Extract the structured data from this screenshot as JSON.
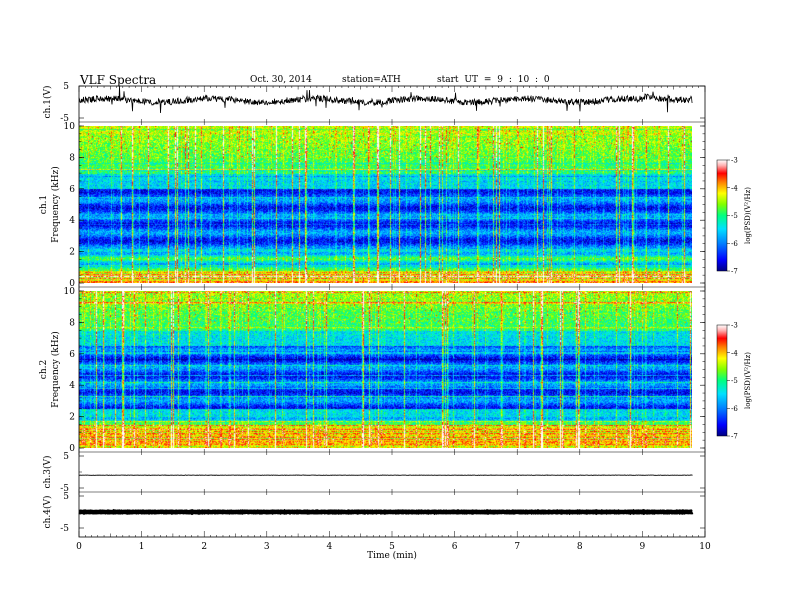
{
  "header": {
    "title": "VLF  Spectra",
    "date": "Oct. 30, 2014",
    "station": "station=ATH",
    "start_ut": "start  UT  =   9  : 10 : 0"
  },
  "colors": {
    "colormap": [
      "#000080",
      "#0000ff",
      "#0080ff",
      "#00e0ff",
      "#00ff80",
      "#80ff00",
      "#ffff00",
      "#ff8000",
      "#ff0000",
      "#ffb0b0",
      "#ffffff"
    ]
  },
  "chart_data": [
    {
      "type": "line",
      "id": "ch1",
      "ylabel": "ch.1(V)",
      "ylim": [
        -5,
        5
      ],
      "yticks": [
        "5",
        "-5"
      ],
      "x_range_min": [
        0,
        9.8
      ],
      "series": [
        {
          "description": "broadband waveform",
          "baseline": 0.5,
          "amplitude": 2.0,
          "trend": "rises slightly after 9 min"
        }
      ]
    },
    {
      "type": "heatmap",
      "id": "ch1_spectrogram",
      "ylabel": [
        "ch.1",
        "Frequency  (kHz)"
      ],
      "ylim": [
        0,
        10
      ],
      "yticks": [
        "0",
        "2",
        "4",
        "6",
        "8",
        "10"
      ],
      "x_range_min": [
        0,
        9.8
      ],
      "colorbar": {
        "label": "log(PSD)(V²/Hz)",
        "range": [
          -7,
          -3
        ],
        "ticks": [
          "-3",
          "-4",
          "-5",
          "-6",
          "-7"
        ]
      },
      "features": {
        "intense_band_khz": [
          0,
          0.8
        ],
        "high_noise_band_khz": [
          7.0,
          10.0
        ],
        "low_level_band_khz": [
          2.2,
          6.0
        ],
        "sferic_bursts": "frequent vertical broadband impulses across 0-10 kHz"
      }
    },
    {
      "type": "heatmap",
      "id": "ch2_spectrogram",
      "ylabel": [
        "ch.2",
        "Frequency  (kHz)"
      ],
      "ylim": [
        0,
        10
      ],
      "yticks": [
        "0",
        "2",
        "4",
        "6",
        "8",
        "10"
      ],
      "x_range_min": [
        0,
        9.8
      ],
      "colorbar": {
        "label": "log(PSD)(V²/Hz)",
        "range": [
          -7,
          -3
        ],
        "ticks": [
          "-3",
          "-4",
          "-5",
          "-6",
          "-7"
        ]
      },
      "features": {
        "intense_band_khz": [
          0,
          1.5
        ],
        "high_noise_band_khz": [
          7.5,
          10.0
        ],
        "low_level_band_khz": [
          2.5,
          6.5
        ],
        "sferic_bursts": "frequent vertical broadband impulses across 0-10 kHz"
      }
    },
    {
      "type": "line",
      "id": "ch3",
      "ylabel": "ch.3(V)",
      "ylim": [
        -5,
        5
      ],
      "yticks": [
        "5",
        "-5"
      ],
      "x_range_min": [
        0,
        9.8
      ],
      "series": [
        {
          "description": "near-constant level",
          "baseline": -1.0,
          "amplitude": 0.1
        }
      ]
    },
    {
      "type": "line",
      "id": "ch4",
      "ylabel": "ch.4(V)",
      "ylim": [
        -5,
        5
      ],
      "yticks": [
        "5",
        "-5"
      ],
      "x_range_min": [
        0,
        9.8
      ],
      "series": [
        {
          "description": "thick constant level",
          "baseline": 0.0,
          "amplitude": 0.15
        }
      ]
    }
  ],
  "x_axis": {
    "label": "Time  (min)",
    "range": [
      0,
      10
    ],
    "ticks": [
      "0",
      "1",
      "2",
      "3",
      "4",
      "5",
      "6",
      "7",
      "8",
      "9",
      "10"
    ]
  }
}
